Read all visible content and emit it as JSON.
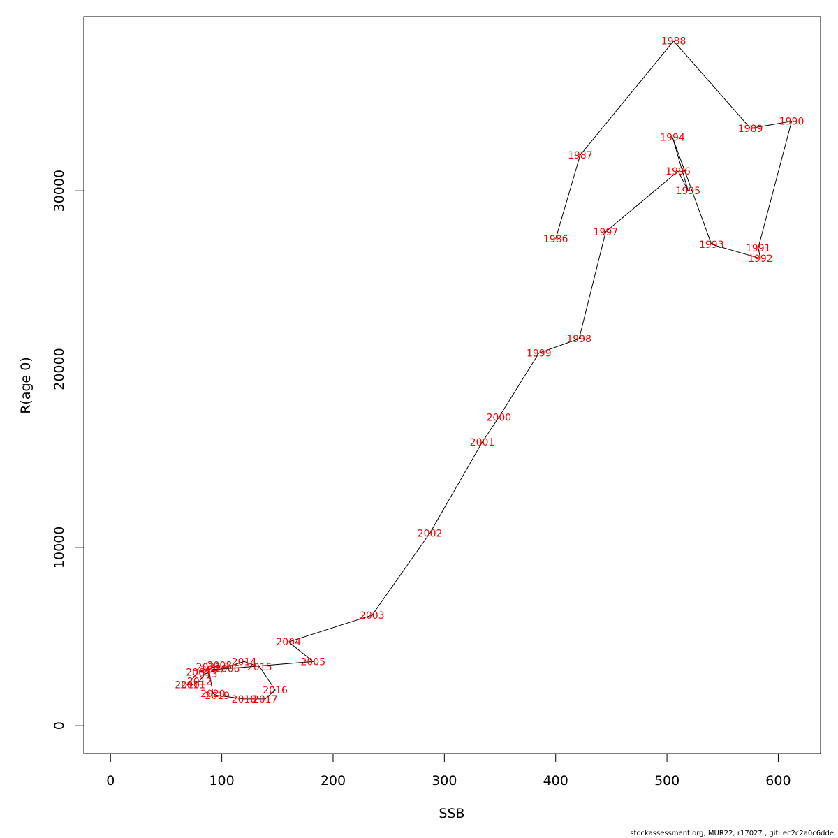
{
  "chart_data": {
    "type": "line",
    "xlabel": "SSB",
    "ylabel": "R(age 0)",
    "xlim": [
      -24,
      638
    ],
    "ylim": [
      -1560,
      39760
    ],
    "x_ticks": [
      0,
      100,
      200,
      300,
      400,
      500,
      600
    ],
    "y_ticks": [
      0,
      10000,
      20000,
      30000
    ],
    "grid": false,
    "line_color": "#000000",
    "label_color": "#ff0000",
    "points": [
      {
        "year": "1986",
        "x": 400,
        "y": 27300
      },
      {
        "year": "1987",
        "x": 422,
        "y": 32000
      },
      {
        "year": "1988",
        "x": 506,
        "y": 38400
      },
      {
        "year": "1989",
        "x": 575,
        "y": 33500
      },
      {
        "year": "1990",
        "x": 612,
        "y": 33900
      },
      {
        "year": "1991",
        "x": 582,
        "y": 26800
      },
      {
        "year": "1992",
        "x": 584,
        "y": 26200
      },
      {
        "year": "1993",
        "x": 540,
        "y": 27000
      },
      {
        "year": "1994",
        "x": 505,
        "y": 33000
      },
      {
        "year": "1995",
        "x": 519,
        "y": 30000
      },
      {
        "year": "1996",
        "x": 510,
        "y": 31100
      },
      {
        "year": "1997",
        "x": 445,
        "y": 27700
      },
      {
        "year": "1998",
        "x": 421,
        "y": 21700
      },
      {
        "year": "1999",
        "x": 385,
        "y": 20900
      },
      {
        "year": "2000",
        "x": 349,
        "y": 17300
      },
      {
        "year": "2001",
        "x": 334,
        "y": 15900
      },
      {
        "year": "2002",
        "x": 287,
        "y": 10800
      },
      {
        "year": "2003",
        "x": 235,
        "y": 6200
      },
      {
        "year": "2004",
        "x": 160,
        "y": 4700
      },
      {
        "year": "2005",
        "x": 182,
        "y": 3600
      },
      {
        "year": "2006",
        "x": 105,
        "y": 3200
      },
      {
        "year": "2007",
        "x": 92,
        "y": 3150
      },
      {
        "year": "2008",
        "x": 98,
        "y": 3400
      },
      {
        "year": "2009",
        "x": 79,
        "y": 3000
      },
      {
        "year": "2010",
        "x": 69,
        "y": 2300
      },
      {
        "year": "2011",
        "x": 74,
        "y": 2300
      },
      {
        "year": "2012",
        "x": 80,
        "y": 2500
      },
      {
        "year": "2013",
        "x": 85,
        "y": 2900
      },
      {
        "year": "2014",
        "x": 120,
        "y": 3600
      },
      {
        "year": "2015",
        "x": 134,
        "y": 3300
      },
      {
        "year": "2016",
        "x": 148,
        "y": 2000
      },
      {
        "year": "2017",
        "x": 139,
        "y": 1500
      },
      {
        "year": "2018",
        "x": 120,
        "y": 1500
      },
      {
        "year": "2019",
        "x": 96,
        "y": 1700
      },
      {
        "year": "2020",
        "x": 92,
        "y": 1800
      },
      {
        "year": "2021",
        "x": 88,
        "y": 3300
      }
    ]
  },
  "footer": "stockassessment.org, MUR22, r17027 , git: ec2c2a0c6dde"
}
